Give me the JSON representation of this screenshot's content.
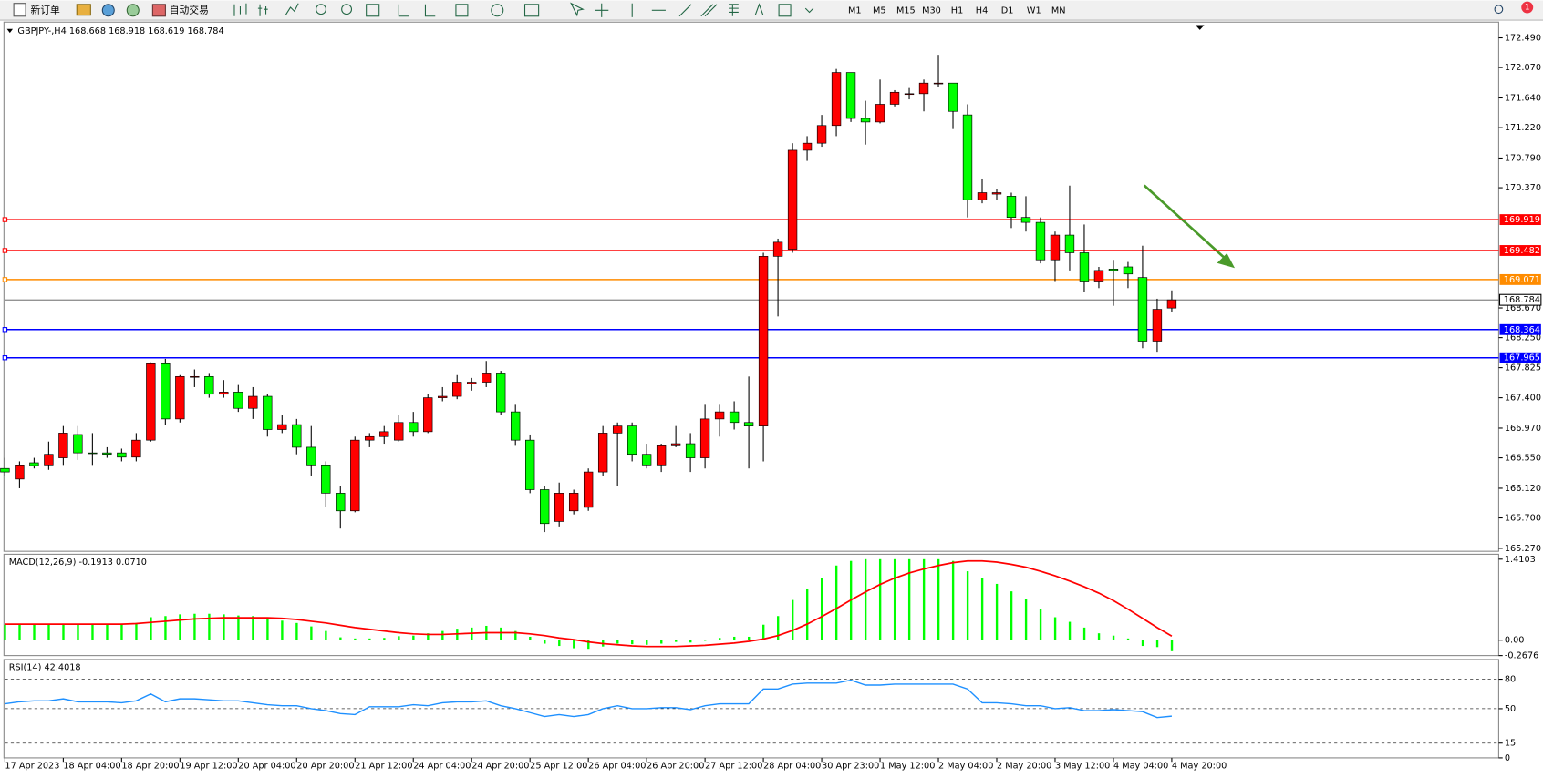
{
  "toolbar": {
    "buttons": [
      "新订单",
      "自动交易"
    ],
    "timeframes": [
      "M1",
      "M5",
      "M15",
      "M30",
      "H1",
      "H4",
      "D1",
      "W1",
      "MN"
    ],
    "notification_count": "1"
  },
  "chart_data": [
    {
      "type": "candlestick",
      "title": "GBPJPY-,H4  168.668 168.918 168.619 168.784",
      "categories": [
        "17 Apr 2023",
        null,
        null,
        null,
        "18 Apr 04:00",
        null,
        null,
        null,
        "18 Apr 20:00",
        null,
        null,
        null,
        "19 Apr 12:00",
        null,
        null,
        null,
        "20 Apr 04:00",
        null,
        null,
        null,
        "20 Apr 20:00",
        null,
        null,
        null,
        "21 Apr 12:00",
        null,
        null,
        null,
        "24 Apr 04:00",
        null,
        null,
        null,
        "24 Apr 20:00",
        null,
        null,
        null,
        "25 Apr 12:00",
        null,
        null,
        null,
        "26 Apr 04:00",
        null,
        null,
        null,
        "26 Apr 20:00",
        null,
        null,
        null,
        "27 Apr 12:00",
        null,
        null,
        null,
        "28 Apr 04:00",
        null,
        null,
        null,
        "30 Apr 23:00",
        null,
        null,
        null,
        "1 May 12:00",
        null,
        null,
        null,
        "2 May 04:00",
        null,
        null,
        null,
        "2 May 20:00",
        null,
        null,
        null,
        "3 May 12:00",
        null,
        null,
        null,
        "4 May 04:00",
        null,
        null,
        null,
        "4 May 20:00"
      ],
      "open": [
        166.4,
        166.25,
        166.48,
        166.45,
        166.55,
        166.88,
        166.62,
        166.62,
        166.62,
        166.56,
        166.8,
        167.88,
        167.1,
        167.7,
        167.7,
        167.45,
        167.48,
        167.25,
        167.42,
        166.95,
        167.02,
        166.7,
        166.45,
        166.05,
        165.8,
        166.8,
        166.85,
        166.8,
        167.05,
        166.92,
        167.4,
        167.42,
        167.6,
        167.62,
        167.75,
        167.2,
        166.8,
        166.1,
        165.65,
        165.8,
        165.85,
        166.35,
        166.9,
        167.0,
        166.6,
        166.45,
        166.72,
        166.75,
        166.55,
        167.1,
        167.2,
        167.05,
        167.0,
        169.4,
        169.5,
        170.9,
        171.0,
        171.25,
        172.0,
        171.35,
        171.3,
        171.55,
        171.7,
        171.7,
        171.85,
        171.85,
        171.4,
        170.2,
        170.28,
        170.25,
        169.95,
        169.88,
        169.35,
        169.7,
        169.45,
        169.05,
        169.22,
        169.25,
        169.1,
        168.2,
        168.668
      ],
      "high": [
        166.55,
        166.5,
        166.55,
        166.78,
        167.0,
        167.0,
        166.9,
        166.7,
        166.68,
        166.9,
        167.9,
        167.95,
        167.72,
        167.8,
        167.75,
        167.65,
        167.58,
        167.55,
        167.45,
        167.15,
        167.1,
        167.0,
        166.5,
        166.15,
        166.85,
        166.9,
        167.0,
        167.15,
        167.2,
        167.45,
        167.55,
        167.72,
        167.68,
        167.92,
        167.78,
        167.3,
        166.88,
        166.15,
        166.2,
        166.1,
        166.4,
        167.0,
        167.05,
        167.05,
        166.75,
        166.75,
        167.0,
        166.9,
        167.3,
        167.3,
        167.35,
        167.7,
        169.45,
        169.65,
        171.0,
        171.1,
        171.4,
        172.05,
        172.0,
        171.6,
        171.9,
        171.75,
        171.78,
        171.9,
        172.25,
        171.85,
        171.55,
        170.5,
        170.35,
        170.3,
        170.25,
        169.95,
        169.75,
        170.4,
        169.85,
        169.25,
        169.35,
        169.32,
        169.55,
        168.8,
        168.918
      ],
      "low": [
        166.3,
        166.12,
        166.4,
        166.38,
        166.45,
        166.52,
        166.45,
        166.55,
        166.5,
        166.5,
        166.78,
        167.02,
        167.05,
        167.55,
        167.4,
        167.4,
        167.2,
        167.1,
        166.85,
        166.9,
        166.6,
        166.3,
        165.85,
        165.55,
        165.78,
        166.7,
        166.75,
        166.78,
        166.85,
        166.9,
        167.35,
        167.38,
        167.5,
        167.55,
        167.15,
        166.72,
        166.05,
        165.5,
        165.58,
        165.75,
        165.8,
        166.3,
        166.15,
        166.5,
        166.4,
        166.35,
        166.7,
        166.35,
        166.4,
        166.85,
        166.95,
        166.4,
        166.5,
        168.55,
        169.45,
        170.75,
        170.95,
        171.1,
        171.3,
        170.98,
        171.28,
        171.52,
        171.62,
        171.45,
        171.8,
        171.2,
        169.95,
        170.15,
        170.2,
        169.8,
        169.75,
        169.3,
        169.05,
        169.2,
        168.9,
        168.95,
        168.7,
        168.95,
        168.1,
        168.05,
        168.619
      ],
      "close": [
        166.35,
        166.45,
        166.44,
        166.6,
        166.9,
        166.62,
        166.61,
        166.6,
        166.56,
        166.8,
        167.88,
        167.1,
        167.7,
        167.7,
        167.45,
        167.48,
        167.25,
        167.42,
        166.95,
        167.02,
        166.7,
        166.45,
        166.05,
        165.8,
        166.8,
        166.85,
        166.92,
        167.05,
        166.92,
        167.4,
        167.42,
        167.62,
        167.62,
        167.75,
        167.2,
        166.8,
        166.1,
        165.62,
        166.05,
        166.05,
        166.35,
        166.9,
        167.0,
        166.6,
        166.45,
        166.72,
        166.75,
        166.55,
        167.1,
        167.2,
        167.05,
        167.0,
        169.4,
        169.6,
        170.9,
        171.0,
        171.25,
        172.0,
        171.35,
        171.3,
        171.55,
        171.72,
        171.7,
        171.85,
        171.85,
        171.45,
        170.2,
        170.3,
        170.3,
        169.95,
        169.88,
        169.35,
        169.7,
        169.45,
        169.05,
        169.2,
        169.2,
        169.15,
        168.2,
        168.65,
        168.784
      ],
      "up_color": "#ff0000",
      "down_color": "#00ff00",
      "ylim": [
        165.27,
        172.49
      ],
      "yticks": [
        {
          "value": 172.49,
          "label": "172.490"
        },
        {
          "value": 172.07,
          "label": "172.070"
        },
        {
          "value": 171.64,
          "label": "171.640"
        },
        {
          "value": 171.22,
          "label": "171.220"
        },
        {
          "value": 170.79,
          "label": "170.790"
        },
        {
          "value": 170.37,
          "label": "170.370"
        },
        {
          "value": 168.67,
          "label": "168.670"
        },
        {
          "value": 168.25,
          "label": "168.250"
        },
        167.825,
        {
          "value": 167.4,
          "label": "167.400"
        },
        {
          "value": 166.97,
          "label": "166.970"
        },
        {
          "value": 166.55,
          "label": "166.550"
        },
        {
          "value": 166.12,
          "label": "166.120"
        },
        {
          "value": 165.7,
          "label": "165.700"
        },
        {
          "value": 165.27,
          "label": "165.270"
        }
      ],
      "levels": [
        {
          "value": 169.919,
          "color": "#ff0000"
        },
        {
          "value": 169.482,
          "color": "#ff0000"
        },
        {
          "value": 169.071,
          "color": "#ff8c00"
        },
        {
          "value": 168.364,
          "color": "#0000ff"
        },
        {
          "value": 167.965,
          "color": "#0000ff"
        }
      ]
    },
    {
      "type": "macd",
      "title": "MACD(12,26,9) -0.1913 0.0710",
      "histogram": {
        "color": "#00ff00",
        "values": [
          0.27,
          0.27,
          0.27,
          0.27,
          0.28,
          0.28,
          0.28,
          0.28,
          0.28,
          0.3,
          0.4,
          0.42,
          0.45,
          0.46,
          0.46,
          0.45,
          0.43,
          0.42,
          0.38,
          0.34,
          0.3,
          0.24,
          0.16,
          0.05,
          0.03,
          0.03,
          0.04,
          0.07,
          0.08,
          0.12,
          0.16,
          0.2,
          0.22,
          0.25,
          0.22,
          0.16,
          0.06,
          -0.06,
          -0.1,
          -0.14,
          -0.15,
          -0.11,
          -0.06,
          -0.07,
          -0.08,
          -0.06,
          -0.03,
          -0.04,
          0.0,
          0.04,
          0.06,
          0.06,
          0.27,
          0.42,
          0.7,
          0.9,
          1.08,
          1.3,
          1.38,
          1.41,
          1.41,
          1.41,
          1.41,
          1.41,
          1.41,
          1.38,
          1.2,
          1.08,
          0.98,
          0.85,
          0.72,
          0.55,
          0.4,
          0.32,
          0.22,
          0.12,
          0.08,
          0.03,
          -0.1,
          -0.12,
          -0.1913
        ]
      },
      "signal": {
        "color": "#ff0000",
        "values": [
          0.28,
          0.28,
          0.28,
          0.28,
          0.28,
          0.28,
          0.28,
          0.28,
          0.28,
          0.29,
          0.31,
          0.33,
          0.35,
          0.37,
          0.38,
          0.39,
          0.39,
          0.39,
          0.39,
          0.38,
          0.36,
          0.33,
          0.3,
          0.26,
          0.22,
          0.19,
          0.16,
          0.13,
          0.11,
          0.1,
          0.1,
          0.11,
          0.12,
          0.13,
          0.13,
          0.13,
          0.11,
          0.08,
          0.04,
          0.01,
          -0.03,
          -0.06,
          -0.08,
          -0.1,
          -0.11,
          -0.11,
          -0.11,
          -0.1,
          -0.09,
          -0.07,
          -0.05,
          -0.02,
          0.02,
          0.08,
          0.17,
          0.28,
          0.41,
          0.55,
          0.7,
          0.84,
          0.97,
          1.08,
          1.17,
          1.24,
          1.3,
          1.35,
          1.38,
          1.38,
          1.36,
          1.32,
          1.27,
          1.2,
          1.12,
          1.03,
          0.93,
          0.82,
          0.69,
          0.54,
          0.38,
          0.22,
          0.071
        ]
      },
      "ylim": [
        -0.2676,
        1.4103
      ],
      "yticks": [
        1.4103,
        {
          "value": 0,
          "label": "0.00"
        },
        -0.2676
      ]
    },
    {
      "type": "line",
      "title": "RSI(14) 42.4018",
      "color": "#1e90ff",
      "values": [
        55,
        57,
        58,
        58,
        60,
        57,
        57,
        57,
        56,
        58,
        65,
        57,
        60,
        60,
        59,
        58,
        58,
        56,
        54,
        53,
        53,
        50,
        48,
        45,
        44,
        52,
        52,
        52,
        54,
        53,
        56,
        57,
        57,
        58,
        53,
        50,
        46,
        42,
        44,
        42,
        44,
        50,
        53,
        50,
        50,
        51,
        51,
        49,
        53,
        55,
        55,
        55,
        70,
        70,
        75,
        76,
        76,
        76,
        79,
        74,
        74,
        75,
        75,
        75,
        75,
        75,
        70,
        56,
        56,
        55,
        53,
        53,
        50,
        51,
        48,
        48,
        49,
        48,
        47,
        41,
        42.4018
      ],
      "ylim": [
        0,
        100
      ],
      "yticks": [
        80,
        50,
        15,
        0
      ],
      "levels": [
        80,
        50,
        15
      ]
    }
  ]
}
